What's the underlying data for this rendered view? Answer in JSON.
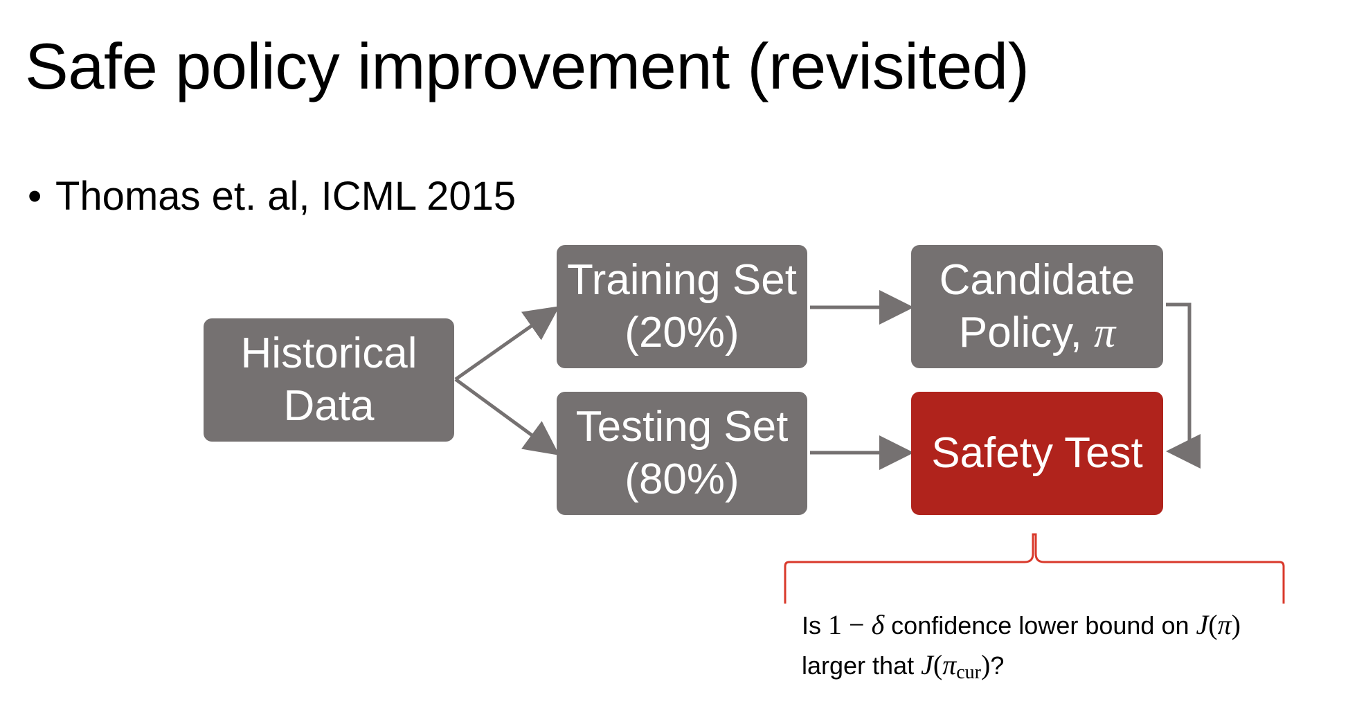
{
  "slide": {
    "title": "Safe policy improvement (revisited)",
    "bullet_marker": "•",
    "bullet": "Thomas et. al, ICML 2015"
  },
  "diagram": {
    "nodes": {
      "historical": {
        "line1": "Historical",
        "line2": "Data"
      },
      "training": {
        "line1": "Training Set",
        "line2": "(20%)"
      },
      "testing": {
        "line1": "Testing Set",
        "line2": "(80%)"
      },
      "candidate": {
        "line1": "Candidate",
        "line2": "Policy, ",
        "symbol": "π"
      },
      "safety": {
        "line1": "Safety Test"
      }
    },
    "caption": {
      "p1": "Is ",
      "m1": "1 − ",
      "m2": "δ",
      "p2": " confidence lower bound on ",
      "m3": "J",
      "m4": "(",
      "m5": "π",
      "m6": ")",
      "p3": "larger that ",
      "m7": "J",
      "m8": "(",
      "m9": "π",
      "m10": "cur",
      "m11": ")",
      "p4": "?"
    }
  },
  "colors": {
    "grey_box": "#757171",
    "red_box": "#b0231c",
    "arrow": "#757171",
    "brace": "#d9392b"
  }
}
